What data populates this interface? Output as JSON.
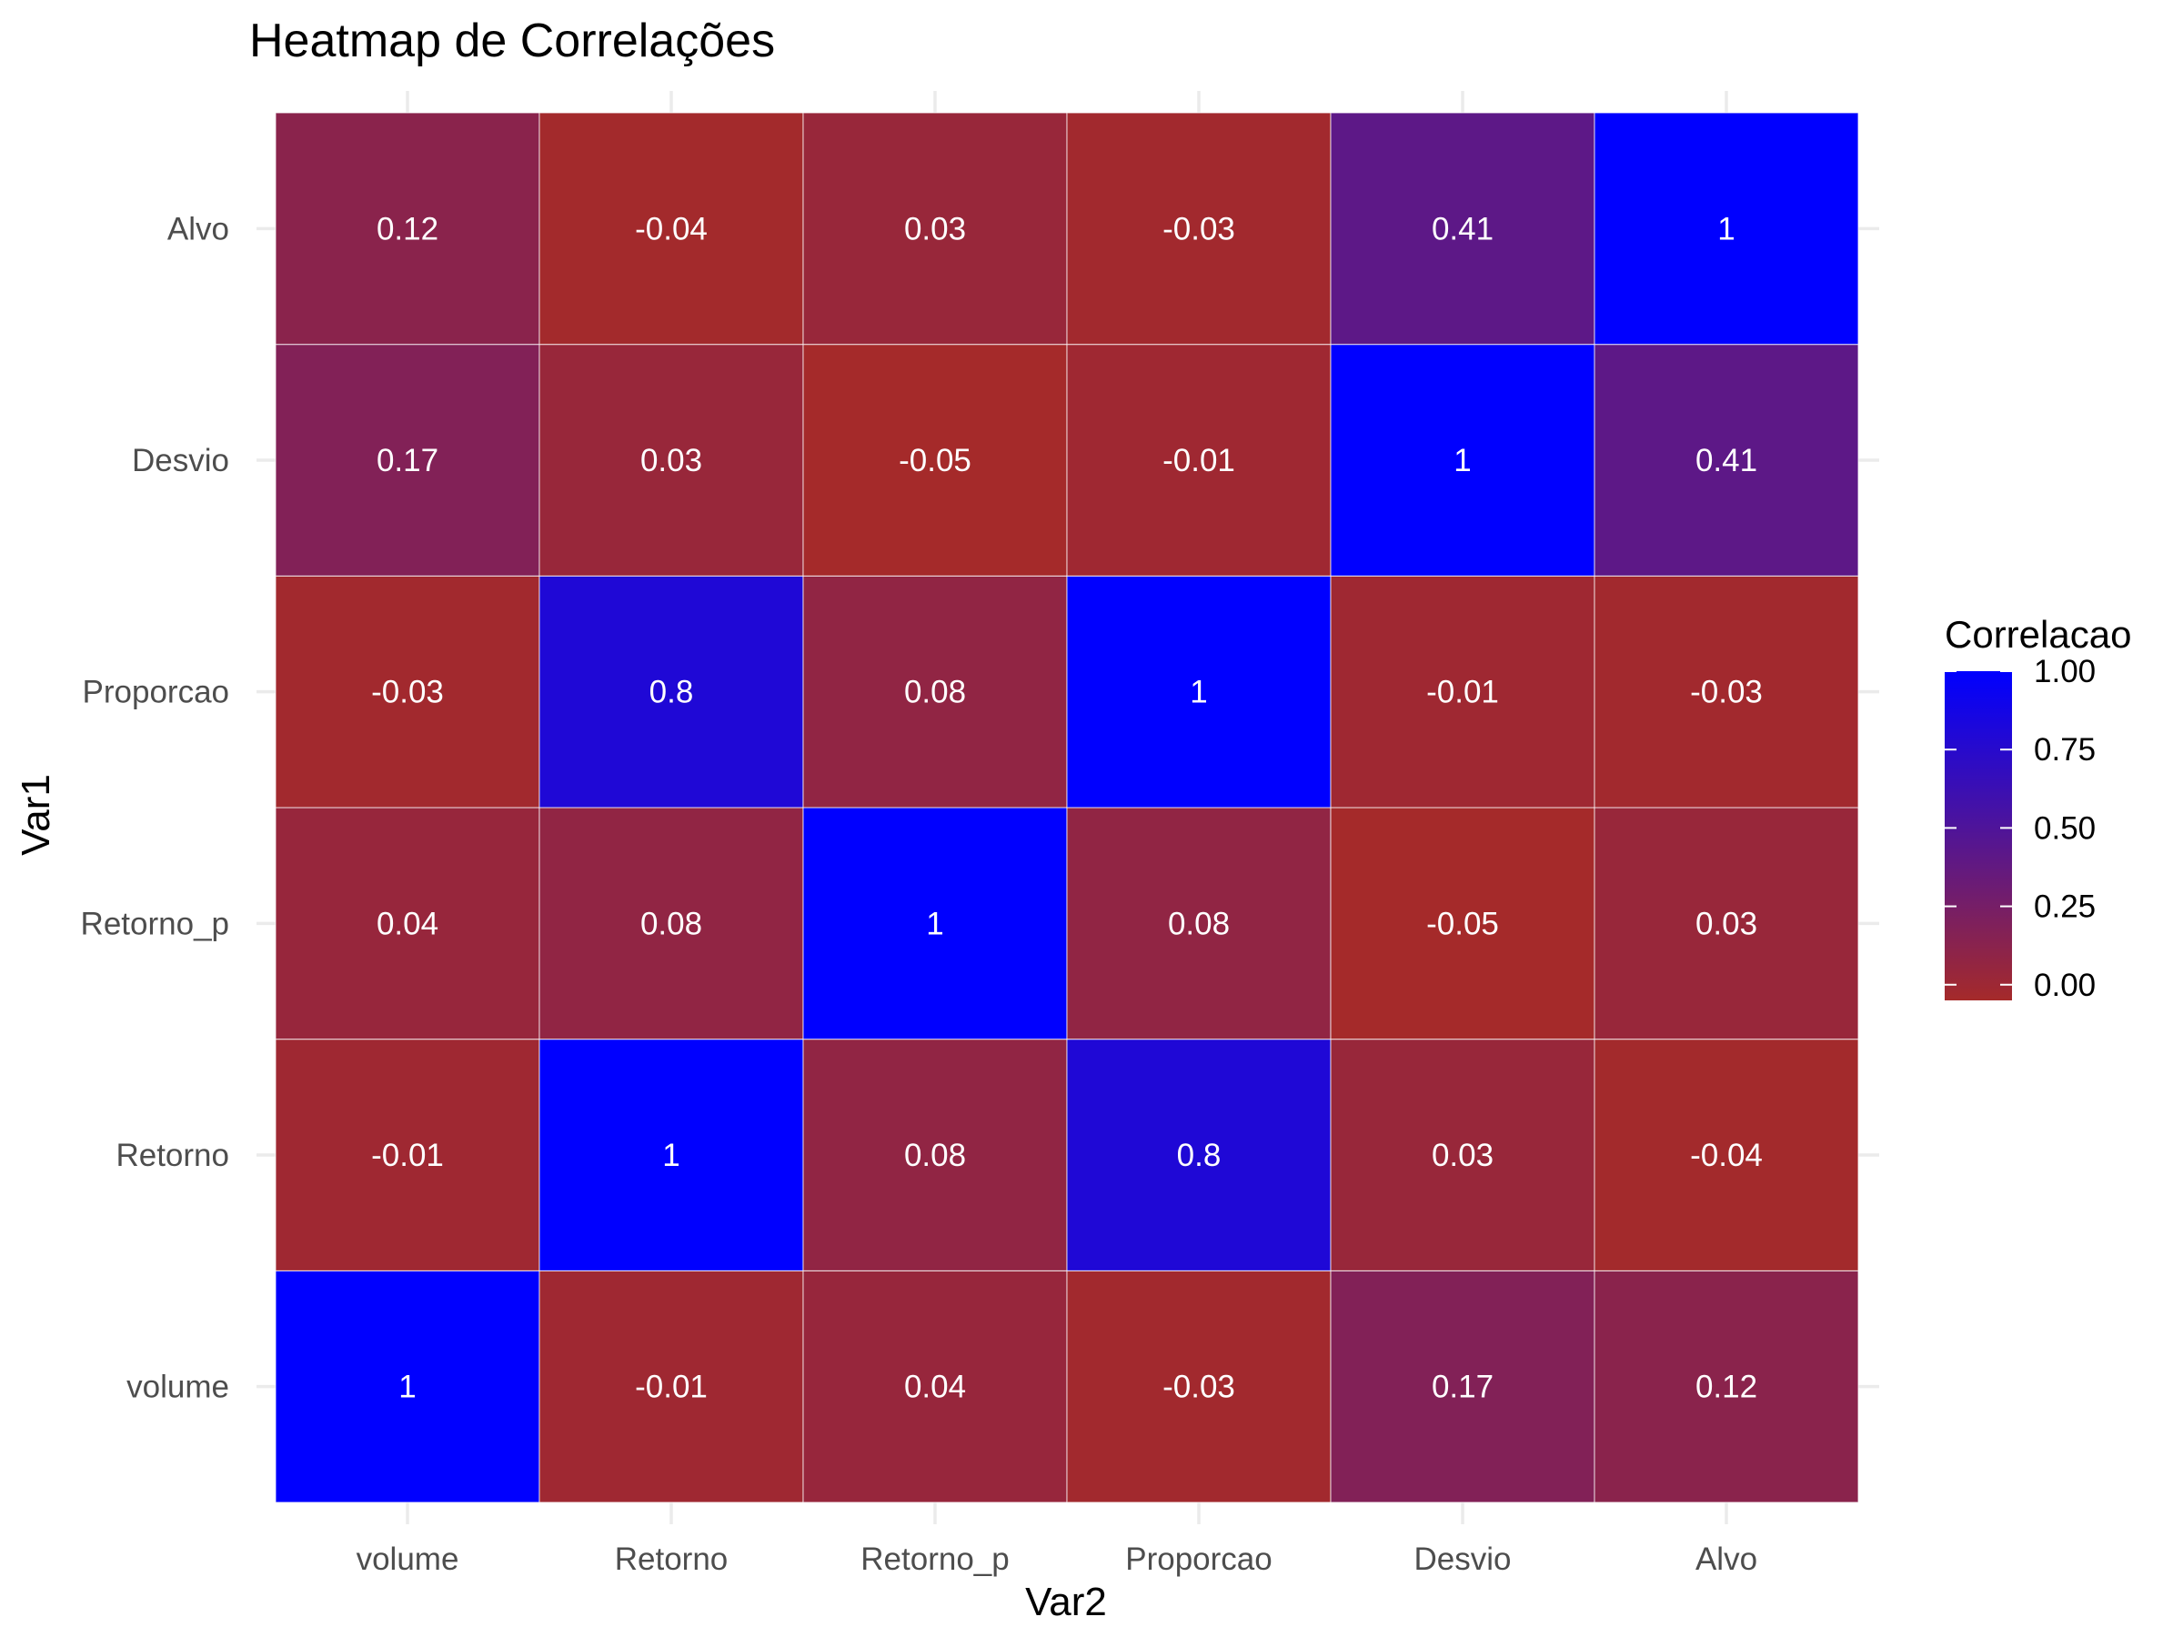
{
  "chart_data": {
    "type": "heatmap",
    "title": "Heatmap de Correlações",
    "xlabel": "Var2",
    "ylabel": "Var1",
    "x_categories": [
      "volume",
      "Retorno",
      "Retorno_p",
      "Proporcao",
      "Desvio",
      "Alvo"
    ],
    "y_categories": [
      "volume",
      "Retorno",
      "Retorno_p",
      "Proporcao",
      "Desvio",
      "Alvo"
    ],
    "matrix": [
      [
        1,
        -0.01,
        0.04,
        -0.03,
        0.17,
        0.12
      ],
      [
        -0.01,
        1,
        0.08,
        0.8,
        0.03,
        -0.04
      ],
      [
        0.04,
        0.08,
        1,
        0.08,
        -0.05,
        0.03
      ],
      [
        -0.03,
        0.8,
        0.08,
        1,
        -0.01,
        -0.03
      ],
      [
        0.17,
        0.03,
        -0.05,
        -0.01,
        1,
        0.41
      ],
      [
        0.12,
        -0.04,
        0.03,
        -0.03,
        0.41,
        1
      ]
    ],
    "legend": {
      "title": "Correlacao",
      "ticks": [
        "0.00",
        "0.25",
        "0.50",
        "0.75",
        "1.00"
      ],
      "tick_values": [
        0,
        0.25,
        0.5,
        0.75,
        1
      ],
      "range": [
        -0.05,
        1
      ],
      "low_color": "#a52a2a",
      "high_color": "#0000ff",
      "position": "right"
    },
    "grid": true
  }
}
